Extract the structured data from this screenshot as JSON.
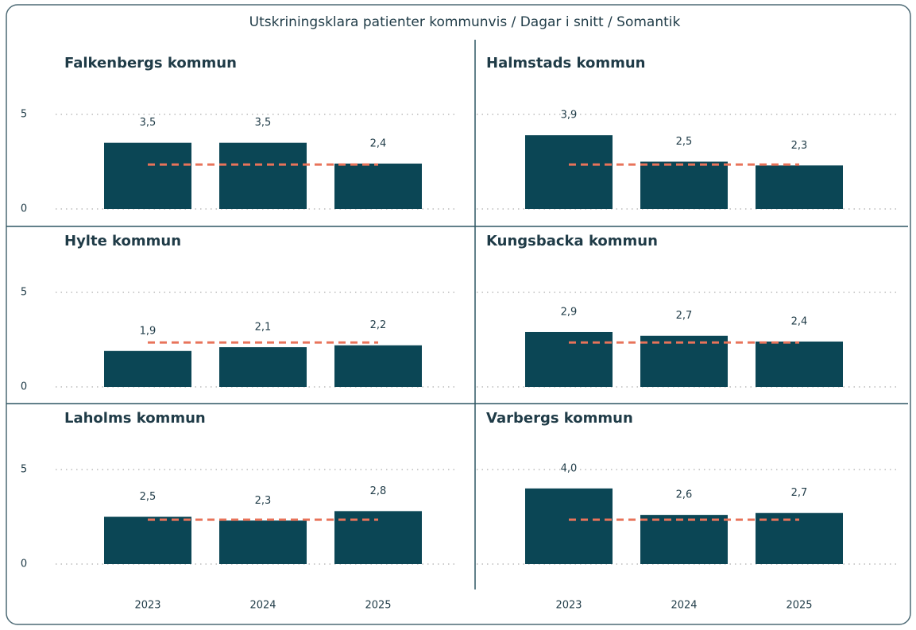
{
  "title": "Utskriningsklara patienter kommunvis / Dagar i snitt / Somantik",
  "categories": [
    "2023",
    "2024",
    "2025"
  ],
  "ylim": [
    0,
    5
  ],
  "yticks": [
    0,
    5
  ],
  "grid": true,
  "bar_color": "#0b4655",
  "reference_color": "#e8735a",
  "chart_data": [
    {
      "type": "bar",
      "title": "Falkenbergs kommun",
      "values": [
        3.5,
        3.5,
        2.4
      ],
      "value_labels": [
        "3,5",
        "3,5",
        "2,4"
      ],
      "reference": 2.35
    },
    {
      "type": "bar",
      "title": "Halmstads kommun",
      "values": [
        3.9,
        2.5,
        2.3
      ],
      "value_labels": [
        "3,9",
        "2,5",
        "2,3"
      ],
      "reference": 2.35
    },
    {
      "type": "bar",
      "title": "Hylte kommun",
      "values": [
        1.9,
        2.1,
        2.2
      ],
      "value_labels": [
        "1,9",
        "2,1",
        "2,2"
      ],
      "reference": 2.35
    },
    {
      "type": "bar",
      "title": "Kungsbacka kommun",
      "values": [
        2.9,
        2.7,
        2.4
      ],
      "value_labels": [
        "2,9",
        "2,7",
        "2,4"
      ],
      "reference": 2.35
    },
    {
      "type": "bar",
      "title": "Laholms kommun",
      "values": [
        2.5,
        2.3,
        2.8
      ],
      "value_labels": [
        "2,5",
        "2,3",
        "2,8"
      ],
      "reference": 2.35
    },
    {
      "type": "bar",
      "title": "Varbergs kommun",
      "values": [
        4.0,
        2.6,
        2.7
      ],
      "value_labels": [
        "4,0",
        "2,6",
        "2,7"
      ],
      "reference": 2.35
    }
  ]
}
